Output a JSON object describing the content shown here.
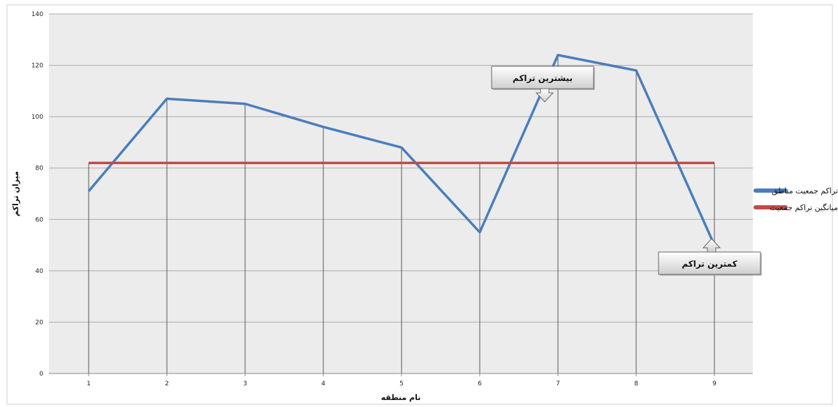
{
  "chart_data": {
    "type": "line",
    "categories": [
      "1",
      "2",
      "3",
      "4",
      "5",
      "6",
      "7",
      "8",
      "9"
    ],
    "series": [
      {
        "name": "تراکم جمعیت مناطق",
        "values": [
          71,
          107,
          105,
          96,
          88,
          55,
          124,
          118,
          50
        ],
        "color": "#4a7ebb"
      },
      {
        "name": "میانگین تراکم جمعیت",
        "values": [
          82,
          82,
          82,
          82,
          82,
          82,
          82,
          82,
          82
        ],
        "color": "#be4b48"
      }
    ],
    "xlabel": "نام منطقه",
    "ylabel": "میزان تراکم",
    "ylim": [
      0,
      140
    ],
    "yticks": [
      0,
      20,
      40,
      60,
      80,
      100,
      120,
      140
    ],
    "grid": true,
    "drop_lines": true,
    "legend_position": "right",
    "plot_background": "#ececec",
    "gridline_color": "#aaaaaa",
    "annotations": [
      {
        "text": "بیشترین تراکم",
        "category": "7",
        "arrow": "down"
      },
      {
        "text": "کمترین تراکم",
        "category": "9",
        "arrow": "up"
      }
    ]
  }
}
